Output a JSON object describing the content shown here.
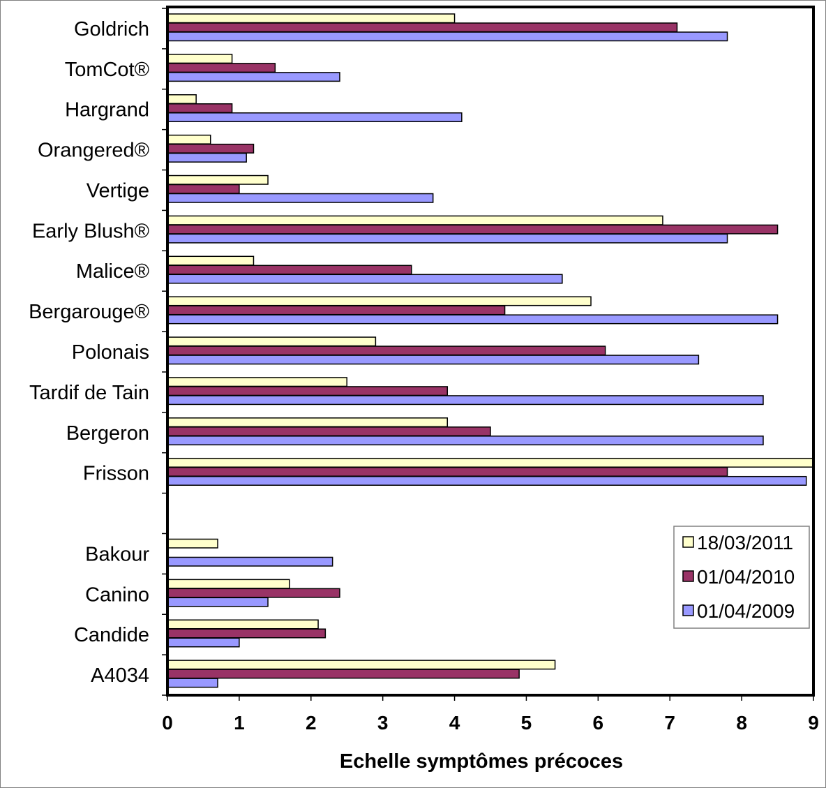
{
  "chart_data": {
    "type": "bar",
    "orientation": "horizontal",
    "xlabel": "Echelle symptômes précoces",
    "xlim": [
      0,
      9
    ],
    "xticks": [
      "0",
      "1",
      "2",
      "3",
      "4",
      "5",
      "6",
      "7",
      "8",
      "9"
    ],
    "grid": false,
    "legend_position": "bottom-right",
    "categories": [
      "Goldrich",
      "TomCot®",
      "Hargrand",
      "Orangered®",
      "Vertige",
      "Early Blush®",
      "Malice®",
      "Bergarouge®",
      "Polonais",
      "Tardif de Tain",
      "Bergeron",
      "Frisson",
      "",
      "Bakour",
      "Canino",
      "Candide",
      "A4034"
    ],
    "series": [
      {
        "name": "18/03/2011",
        "color": "#ffffcc",
        "values": [
          4.0,
          0.9,
          0.4,
          0.6,
          1.4,
          6.9,
          1.2,
          5.9,
          2.9,
          2.5,
          3.9,
          9.0,
          null,
          0.7,
          1.7,
          2.1,
          5.4
        ]
      },
      {
        "name": "01/04/2010",
        "color": "#993366",
        "values": [
          7.1,
          1.5,
          0.9,
          1.2,
          1.0,
          8.5,
          3.4,
          4.7,
          6.1,
          3.9,
          4.5,
          7.8,
          null,
          null,
          2.4,
          2.2,
          4.9
        ]
      },
      {
        "name": "01/04/2009",
        "color": "#9999ff",
        "values": [
          7.8,
          2.4,
          4.1,
          1.1,
          3.7,
          7.8,
          5.5,
          8.5,
          7.4,
          8.3,
          8.3,
          8.9,
          null,
          2.3,
          1.4,
          1.0,
          0.7
        ]
      }
    ]
  }
}
